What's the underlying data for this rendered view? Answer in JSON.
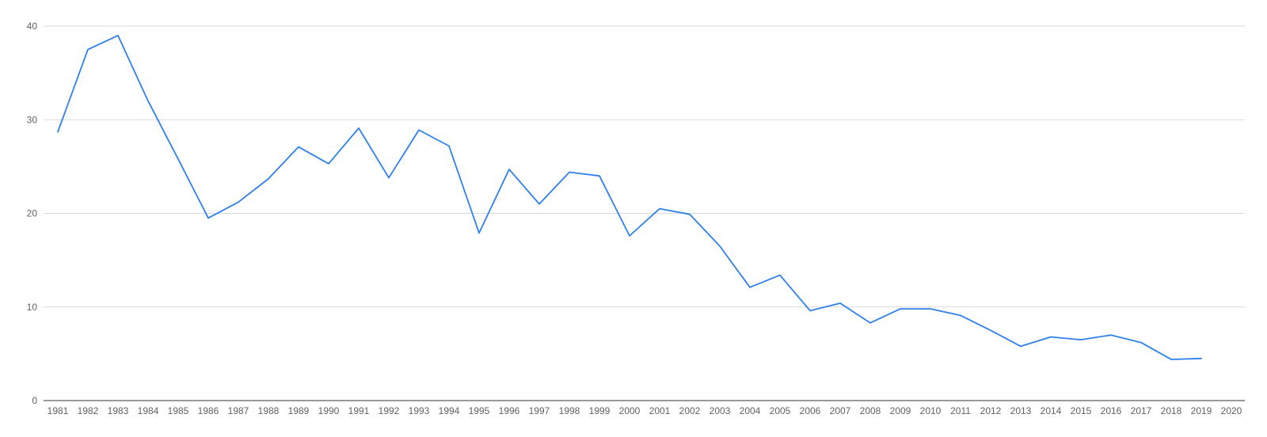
{
  "chart_data": {
    "type": "line",
    "title": "",
    "xlabel": "",
    "ylabel": "",
    "x": [
      1981,
      1982,
      1983,
      1984,
      1985,
      1986,
      1987,
      1988,
      1989,
      1990,
      1991,
      1992,
      1993,
      1994,
      1995,
      1996,
      1997,
      1998,
      1999,
      2000,
      2001,
      2002,
      2003,
      2004,
      2005,
      2006,
      2007,
      2008,
      2009,
      2010,
      2011,
      2012,
      2013,
      2014,
      2015,
      2016,
      2017,
      2018,
      2019,
      2020
    ],
    "x_tick_labels": [
      "1981",
      "1982",
      "1983",
      "1984",
      "1985",
      "1986",
      "1987",
      "1988",
      "1989",
      "1990",
      "1991",
      "1992",
      "1993",
      "1994",
      "1995",
      "1996",
      "1997",
      "1998",
      "1999",
      "2000",
      "2001",
      "2002",
      "2003",
      "2004",
      "2005",
      "2006",
      "2007",
      "2008",
      "2009",
      "2010",
      "2011",
      "2012",
      "2013",
      "2014",
      "2015",
      "2016",
      "2017",
      "2018",
      "2019",
      "2020"
    ],
    "ylim": [
      0,
      40
    ],
    "y_ticks": [
      0,
      10,
      20,
      30,
      40
    ],
    "y_tick_labels": [
      "0",
      "10",
      "20",
      "30",
      "40"
    ],
    "grid": true,
    "series": [
      {
        "color": "#2f80ed",
        "values": [
          28.7,
          37.5,
          39.0,
          32.0,
          25.8,
          19.5,
          21.2,
          23.7,
          27.1,
          25.3,
          29.1,
          23.8,
          28.9,
          27.2,
          17.9,
          24.7,
          21.0,
          24.4,
          24.0,
          17.6,
          20.5,
          19.9,
          16.5,
          12.1,
          13.4,
          9.6,
          10.4,
          8.3,
          9.8,
          9.8,
          9.1,
          7.5,
          5.8,
          6.8,
          6.5,
          7.0,
          6.2,
          4.4,
          4.5,
          null
        ]
      }
    ]
  }
}
